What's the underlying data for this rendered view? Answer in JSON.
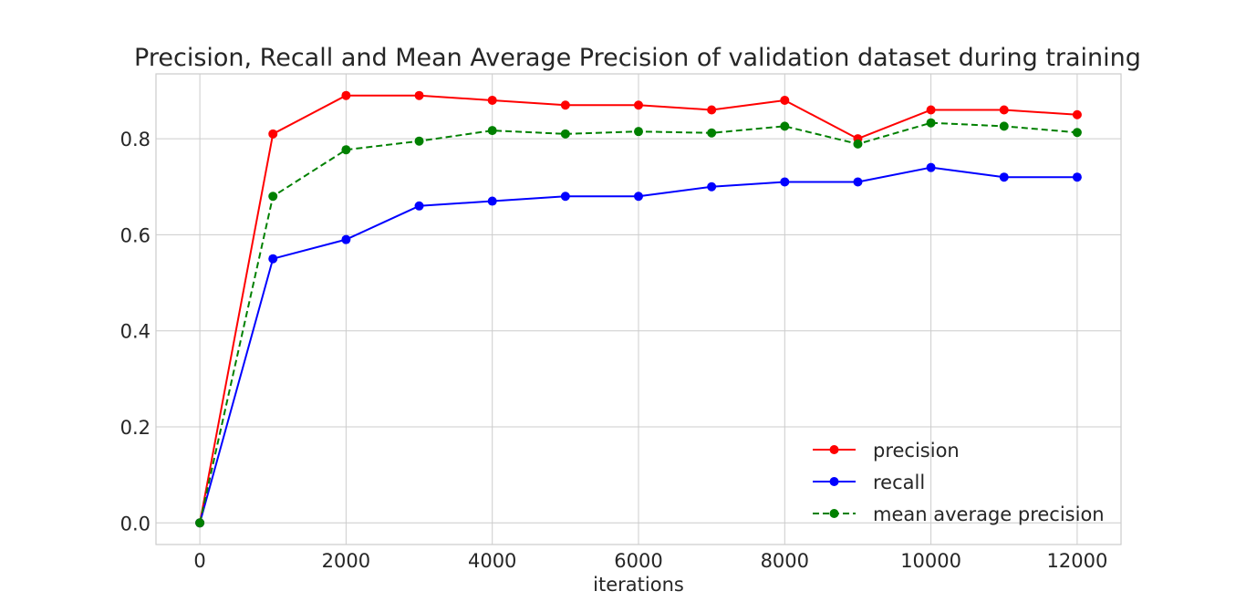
{
  "chart_data": {
    "type": "line",
    "title": "Precision, Recall and Mean Average Precision of validation dataset during training",
    "xlabel": "iterations",
    "ylabel": "",
    "x": [
      0,
      1000,
      2000,
      3000,
      4000,
      5000,
      6000,
      7000,
      8000,
      9000,
      10000,
      11000,
      12000
    ],
    "xlim": [
      -600,
      12600
    ],
    "ylim": [
      -0.045,
      0.935
    ],
    "xticks": [
      0,
      2000,
      4000,
      6000,
      8000,
      10000,
      12000
    ],
    "xtick_labels": [
      "0",
      "2000",
      "4000",
      "6000",
      "8000",
      "10000",
      "12000"
    ],
    "yticks": [
      0.0,
      0.2,
      0.4,
      0.6,
      0.8
    ],
    "ytick_labels": [
      "0.0",
      "0.2",
      "0.4",
      "0.6",
      "0.8"
    ],
    "grid": true,
    "legend_position": "lower-right",
    "series": [
      {
        "name": "precision",
        "color": "#ff0000",
        "line_style": "solid",
        "marker": "circle",
        "values": [
          0.0,
          0.81,
          0.89,
          0.89,
          0.88,
          0.87,
          0.87,
          0.86,
          0.88,
          0.8,
          0.86,
          0.86,
          0.85
        ]
      },
      {
        "name": "recall",
        "color": "#0000ff",
        "line_style": "solid",
        "marker": "circle",
        "values": [
          0.0,
          0.55,
          0.59,
          0.66,
          0.67,
          0.68,
          0.68,
          0.7,
          0.71,
          0.71,
          0.74,
          0.72,
          0.72
        ]
      },
      {
        "name": "mean average precision",
        "color": "#008000",
        "line_style": "dashed",
        "marker": "circle",
        "values": [
          0.0,
          0.68,
          0.777,
          0.795,
          0.817,
          0.81,
          0.815,
          0.812,
          0.826,
          0.789,
          0.833,
          0.826,
          0.813
        ]
      }
    ]
  }
}
